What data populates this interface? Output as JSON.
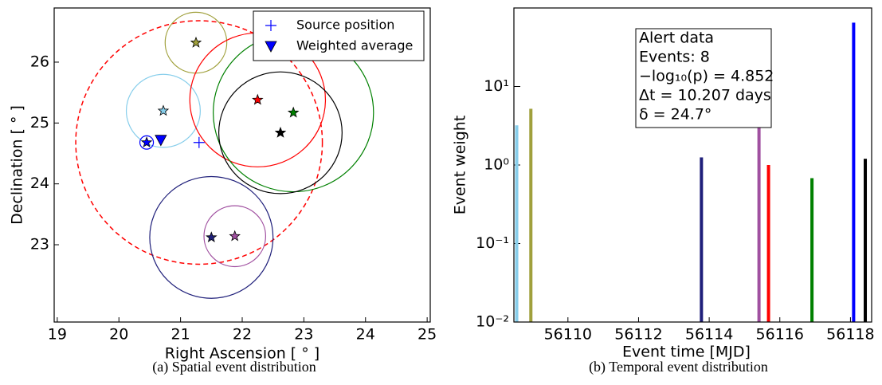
{
  "chart_data": [
    {
      "type": "scatter",
      "caption": "(a) Spatial event distribution",
      "xlabel": "Right Ascension [ ° ]",
      "ylabel": "Declination [ ° ]",
      "xlim": [
        18.95,
        25.05
      ],
      "ylim": [
        21.73,
        26.89
      ],
      "xticks": [
        19,
        20,
        21,
        22,
        23,
        24,
        25
      ],
      "yticks": [
        23,
        24,
        25,
        26
      ],
      "legend": "upper right",
      "events": {
        "ra": [
          21.25,
          20.72,
          20.45,
          22.25,
          22.83,
          22.62,
          21.5,
          21.88
        ],
        "dec": [
          26.32,
          25.2,
          24.68,
          25.38,
          25.17,
          24.84,
          23.12,
          23.14
        ],
        "radius": [
          0.5,
          0.6,
          0.11,
          1.1,
          1.3,
          1.0,
          1.0,
          0.5
        ],
        "colors": [
          "#a0a03c",
          "#87ceeb",
          "#0000ff",
          "#ff0000",
          "#008000",
          "#000000",
          "#1f1f7a",
          "#a050a0"
        ]
      },
      "source": {
        "name": "Source position",
        "color": "#0000ff",
        "ra": 21.3,
        "dec": 24.68,
        "radius": 2.0,
        "circle_color": "#ff0000"
      },
      "average": {
        "name": "Weighted average",
        "color": "#0000ff",
        "ra": 20.68,
        "dec": 24.72
      }
    },
    {
      "type": "bar",
      "caption": "(b) Temporal event distribution",
      "xlabel": "Event time [MJD]",
      "ylabel": "Event weight",
      "log_y": true,
      "xlim": [
        56108.47,
        56118.6
      ],
      "ylim": [
        0.01,
        100
      ],
      "xticks": [
        56110,
        56112,
        56114,
        56116,
        56118
      ],
      "yticks": [
        {
          "value": 0.01,
          "label": "10⁻²"
        },
        {
          "value": 0.1,
          "label": "10⁻¹"
        },
        {
          "value": 1,
          "label": "10⁰"
        },
        {
          "value": 10,
          "label": "10¹"
        }
      ],
      "x": [
        56108.55,
        56108.95,
        56113.78,
        56115.41,
        56115.68,
        56116.91,
        56118.09,
        56118.42
      ],
      "values": [
        3.2,
        5.2,
        1.25,
        3.0,
        1.0,
        0.68,
        65,
        1.2
      ],
      "colors": [
        "#87ceeb",
        "#a0a03c",
        "#1f1f7a",
        "#a050a0",
        "#ff0000",
        "#008000",
        "#0000ff",
        "#000000"
      ],
      "annotations": [
        "Alert data",
        "Events: 8",
        "−log₁₀(p) = 4.852",
        "Δt = 10.207 days",
        "δ = 24.7°"
      ]
    }
  ]
}
